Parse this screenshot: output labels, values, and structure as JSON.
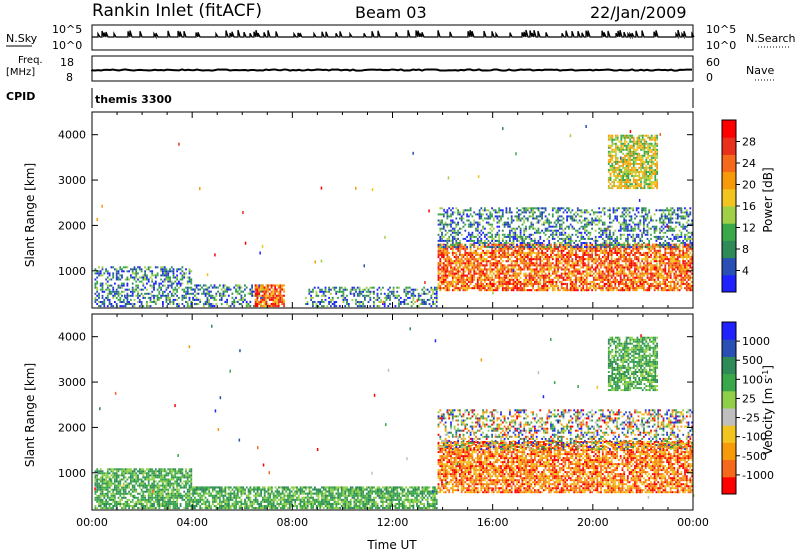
{
  "header": {
    "station": "Rankin Inlet (fitACF)",
    "beam": "Beam 03",
    "date": "22/Jan/2009"
  },
  "strip_panels": {
    "nsky": {
      "label": "N.Sky",
      "right_label": "N.Search",
      "left_ticks": [
        "10^5",
        "10^0"
      ],
      "right_ticks": [
        "10^5",
        "10^0"
      ]
    },
    "freq": {
      "label_line1": "Freq.",
      "label_line2": "[MHz]",
      "left_ticks": [
        "18",
        "8"
      ],
      "right_label": "Nave",
      "right_ticks": [
        "60",
        "0"
      ]
    },
    "cpid": {
      "label": "CPID",
      "mode_text": "themis 3300"
    }
  },
  "colors": {
    "power_scale": [
      "#1f22ff",
      "#2a4fb4",
      "#2e8a57",
      "#3aa84a",
      "#9fd048",
      "#f2c420",
      "#f79a0a",
      "#f4691a",
      "#e8301c",
      "#ff0000"
    ],
    "velocity_scale": [
      "#ff0000",
      "#f4691a",
      "#f79a0a",
      "#f2c420",
      "#bfbfbf",
      "#8fd048",
      "#3aa84a",
      "#2e8a57",
      "#2a4fb4",
      "#1f22ff"
    ]
  },
  "chart_data": [
    {
      "type": "heatmap",
      "title": "Power",
      "ylabel": "Slant Range [km]",
      "colorbar_label": "Power [dB]",
      "colorbar_ticks": [
        "4",
        "8",
        "12",
        "16",
        "20",
        "24",
        "28"
      ],
      "ylim": [
        180,
        4500
      ],
      "y_ticks": [
        "1000",
        "2000",
        "3000",
        "4000"
      ],
      "x_ticks": [
        "00:00",
        "04:00",
        "08:00",
        "12:00",
        "16:00",
        "20:00",
        "00:00"
      ],
      "xlim_hours": [
        0,
        24
      ],
      "echo_regions": [
        {
          "t0": 0.1,
          "t1": 4.0,
          "r0": 200,
          "r1": 1100,
          "level": "low"
        },
        {
          "t0": 4.0,
          "t1": 7.0,
          "r0": 200,
          "r1": 700,
          "level": "low"
        },
        {
          "t0": 6.5,
          "t1": 7.7,
          "r0": 200,
          "r1": 700,
          "level": "high"
        },
        {
          "t0": 8.5,
          "t1": 13.8,
          "r0": 200,
          "r1": 650,
          "level": "low"
        },
        {
          "t0": 13.8,
          "t1": 24.0,
          "r0": 550,
          "r1": 1600,
          "level": "high"
        },
        {
          "t0": 13.8,
          "t1": 24.0,
          "r0": 1500,
          "r1": 2400,
          "level": "low"
        },
        {
          "t0": 20.6,
          "t1": 22.6,
          "r0": 2800,
          "r1": 4000,
          "level": "mid"
        }
      ]
    },
    {
      "type": "heatmap",
      "title": "Velocity",
      "ylabel": "Slant Range [km]",
      "xlabel": "Time UT",
      "colorbar_label": "Velocity [m s^-1]",
      "colorbar_ticks": [
        "-1000",
        "-500",
        "-100",
        "-25",
        "25",
        "100",
        "500",
        "1000"
      ],
      "ylim": [
        180,
        4500
      ],
      "y_ticks": [
        "1000",
        "2000",
        "3000",
        "4000"
      ],
      "x_ticks": [
        "00:00",
        "04:00",
        "08:00",
        "12:00",
        "16:00",
        "20:00",
        "00:00"
      ],
      "xlim_hours": [
        0,
        24
      ],
      "echo_regions": [
        {
          "t0": 0.1,
          "t1": 4.0,
          "r0": 200,
          "r1": 1100,
          "level": "green"
        },
        {
          "t0": 4.0,
          "t1": 13.8,
          "r0": 200,
          "r1": 700,
          "level": "green"
        },
        {
          "t0": 13.8,
          "t1": 24.0,
          "r0": 550,
          "r1": 1700,
          "level": "orange"
        },
        {
          "t0": 13.8,
          "t1": 24.0,
          "r0": 1500,
          "r1": 2400,
          "level": "mixed"
        },
        {
          "t0": 20.6,
          "t1": 22.6,
          "r0": 2800,
          "r1": 4000,
          "level": "green"
        }
      ]
    }
  ]
}
